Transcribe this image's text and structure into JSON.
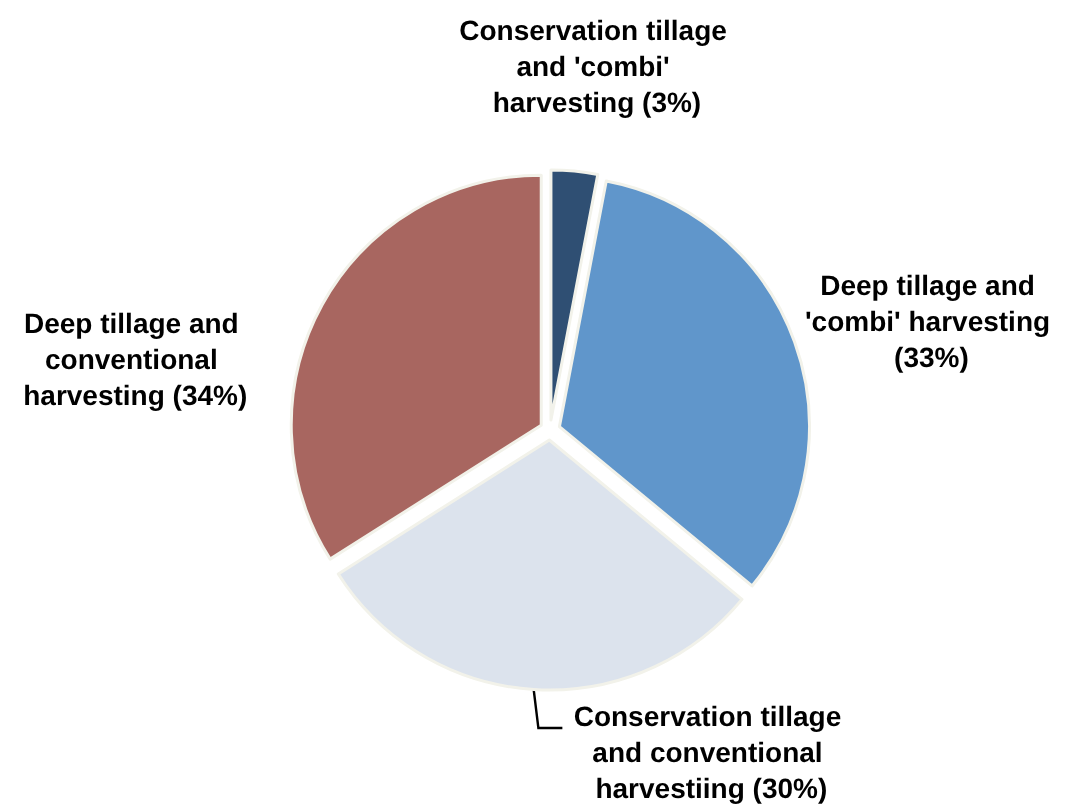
{
  "chart_data": {
    "type": "pie",
    "categories": [
      "Conservation tillage and 'combi' harvesting",
      "Deep tillage and 'combi' harvesting",
      "Conservation tillage and conventional harvestiing",
      "Deep tillage and conventional harvesting"
    ],
    "values": [
      3,
      33,
      30,
      34
    ],
    "value_labels": [
      "(3%)",
      "(33%)",
      "(30%)",
      "(34%)"
    ],
    "colors": [
      "#2f4f73",
      "#6096cb",
      "#dce3ed",
      "#a86660"
    ],
    "legend": false
  }
}
